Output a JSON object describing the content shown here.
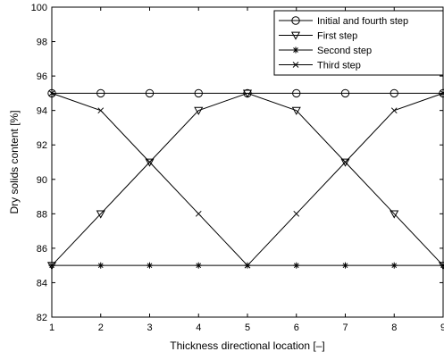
{
  "chart_data": {
    "type": "line",
    "title": "",
    "xlabel": "Thickness directional location [–]",
    "ylabel": "Dry solids content [%]",
    "xlim": [
      1,
      9
    ],
    "ylim": [
      82,
      100
    ],
    "xticks": [
      1,
      2,
      3,
      4,
      5,
      6,
      7,
      8,
      9
    ],
    "yticks": [
      82,
      84,
      86,
      88,
      90,
      92,
      94,
      96,
      98,
      100
    ],
    "x": [
      1,
      2,
      3,
      4,
      5,
      6,
      7,
      8,
      9
    ],
    "grid": false,
    "legend_position": "top-right",
    "series": [
      {
        "name": "Initial and fourth step",
        "marker": "circle",
        "values": [
          95,
          95,
          95,
          95,
          95,
          95,
          95,
          95,
          95
        ]
      },
      {
        "name": "First step",
        "marker": "triangle-down",
        "values": [
          85,
          88,
          91,
          94,
          95,
          94,
          91,
          88,
          85
        ]
      },
      {
        "name": "Second step",
        "marker": "asterisk",
        "values": [
          85,
          85,
          85,
          85,
          85,
          85,
          85,
          85,
          85
        ]
      },
      {
        "name": "Third step",
        "marker": "x",
        "values": [
          95,
          94,
          91,
          88,
          85,
          88,
          91,
          94,
          95
        ]
      }
    ]
  }
}
